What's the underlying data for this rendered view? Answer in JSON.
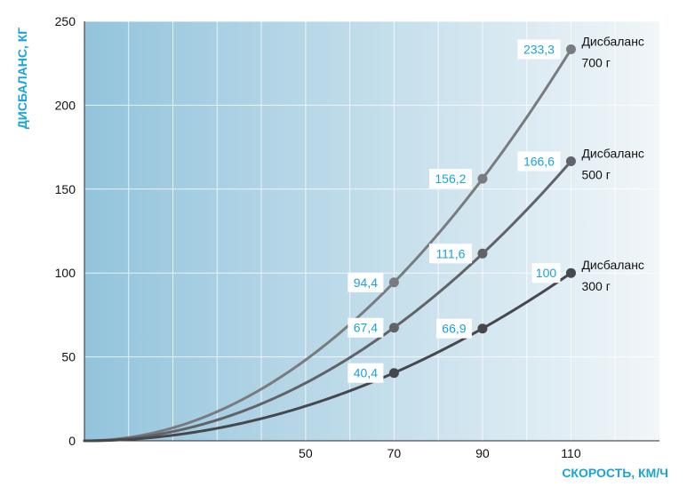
{
  "chart_data": {
    "type": "line",
    "xlabel": "СКОРОСТЬ, КМ/Ч",
    "ylabel": "ДИСБАЛАНС, КГ",
    "x_ticks": [
      50,
      70,
      90,
      110
    ],
    "y_ticks": [
      0,
      50,
      100,
      150,
      200,
      250
    ],
    "xlim": [
      0,
      130
    ],
    "ylim": [
      0,
      250
    ],
    "grid": true,
    "series": [
      {
        "name_lines": [
          "Дисбаланс",
          "700 г"
        ],
        "color": "#7a7b7f",
        "points": [
          {
            "x": 70,
            "y": 94.4,
            "label": "94,4"
          },
          {
            "x": 90,
            "y": 156.2,
            "label": "156,2"
          },
          {
            "x": 110,
            "y": 233.3,
            "label": "233,3"
          }
        ]
      },
      {
        "name_lines": [
          "Дисбаланс",
          "500 г"
        ],
        "color": "#626368",
        "points": [
          {
            "x": 70,
            "y": 67.4,
            "label": "67,4"
          },
          {
            "x": 90,
            "y": 111.6,
            "label": "111,6"
          },
          {
            "x": 110,
            "y": 166.6,
            "label": "166,6"
          }
        ]
      },
      {
        "name_lines": [
          "Дисбаланс",
          "300 г"
        ],
        "color": "#47484d",
        "points": [
          {
            "x": 70,
            "y": 40.4,
            "label": "40,4"
          },
          {
            "x": 90,
            "y": 66.9,
            "label": "66,9"
          },
          {
            "x": 110,
            "y": 100,
            "label": "100"
          }
        ]
      }
    ],
    "colors": {
      "label_text": "#1aa3d6",
      "background_left": "#93c4dc",
      "background_right": "#f1f6f9"
    }
  }
}
